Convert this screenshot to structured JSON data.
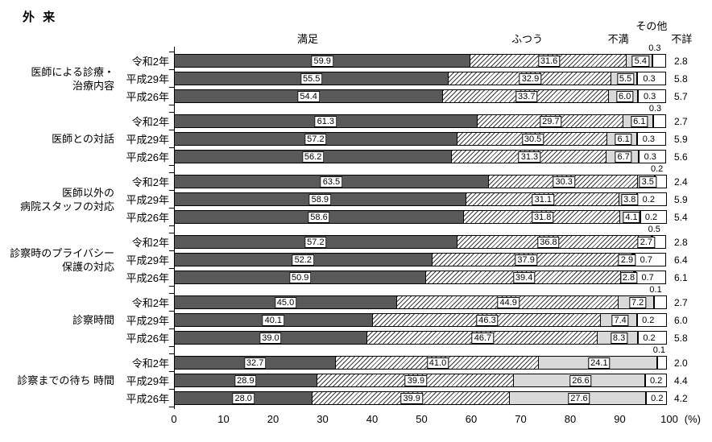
{
  "title": "外 来",
  "legend": {
    "satisfied": "満足",
    "neutral": "ふつう",
    "dissatisfied": "不満",
    "other": "その他",
    "unknown": "不詳"
  },
  "axis": {
    "ticks": [
      0,
      10,
      20,
      30,
      40,
      50,
      60,
      70,
      80,
      90,
      100
    ],
    "unit": "(%)",
    "xlim": [
      0,
      100
    ]
  },
  "colors": {
    "satisfied": "#595959",
    "dissatisfied": "#d9d9d9",
    "other": "#000000",
    "unknown": "#ffffff",
    "neutral_line": "#3a3a3a"
  },
  "chart_data": {
    "type": "bar",
    "stacked": true,
    "orientation": "horizontal",
    "title": "外 来",
    "xlim": [
      0,
      100
    ],
    "unit": "%",
    "series_labels": [
      "満足",
      "ふつう",
      "不満",
      "その他",
      "不詳"
    ],
    "series_names": [
      "satisfied",
      "neutral",
      "dissatisfied",
      "other",
      "unknown"
    ],
    "groups": [
      {
        "label": "医師による診療・治療内容",
        "label_lines": [
          "医師による診療・",
          "治療内容"
        ],
        "rows": [
          {
            "year": "令和2年",
            "values": [
              59.9,
              31.6,
              5.4,
              0.3,
              2.8
            ]
          },
          {
            "year": "平成29年",
            "values": [
              55.5,
              32.9,
              5.5,
              0.3,
              5.8
            ]
          },
          {
            "year": "平成26年",
            "values": [
              54.4,
              33.7,
              6.0,
              0.3,
              5.7
            ]
          }
        ]
      },
      {
        "label": "医師との対話",
        "label_lines": [
          "医師との対話"
        ],
        "rows": [
          {
            "year": "令和2年",
            "values": [
              61.3,
              29.7,
              6.1,
              0.3,
              2.7
            ]
          },
          {
            "year": "平成29年",
            "values": [
              57.2,
              30.5,
              6.1,
              0.3,
              5.9
            ]
          },
          {
            "year": "平成26年",
            "values": [
              56.2,
              31.3,
              6.7,
              0.3,
              5.6
            ]
          }
        ]
      },
      {
        "label": "医師以外の病院スタッフの対応",
        "label_lines": [
          "医師以外の",
          "病院スタッフの対応"
        ],
        "rows": [
          {
            "year": "令和2年",
            "values": [
              63.5,
              30.3,
              3.5,
              0.2,
              2.4
            ]
          },
          {
            "year": "平成29年",
            "values": [
              58.9,
              31.1,
              3.8,
              0.2,
              5.9
            ]
          },
          {
            "year": "平成26年",
            "values": [
              58.6,
              31.8,
              4.1,
              0.2,
              5.4
            ]
          }
        ]
      },
      {
        "label": "診察時のプライバシー保護の対応",
        "label_lines": [
          "診察時のプライバシー",
          "保護の対応"
        ],
        "rows": [
          {
            "year": "令和2年",
            "values": [
              57.2,
              36.8,
              2.7,
              0.5,
              2.8
            ]
          },
          {
            "year": "平成29年",
            "values": [
              52.2,
              37.9,
              2.9,
              0.7,
              6.4
            ]
          },
          {
            "year": "平成26年",
            "values": [
              50.9,
              39.4,
              2.8,
              0.7,
              6.1
            ]
          }
        ]
      },
      {
        "label": "診察時間",
        "label_lines": [
          "診察時間"
        ],
        "rows": [
          {
            "year": "令和2年",
            "values": [
              45.0,
              44.9,
              7.2,
              0.1,
              2.7
            ]
          },
          {
            "year": "平成29年",
            "values": [
              40.1,
              46.3,
              7.4,
              0.2,
              6.0
            ]
          },
          {
            "year": "平成26年",
            "values": [
              39.0,
              46.7,
              8.3,
              0.2,
              5.8
            ]
          }
        ]
      },
      {
        "label": "診察までの待ち 時間",
        "label_lines": [
          "診察までの待ち 時間"
        ],
        "rows": [
          {
            "year": "令和2年",
            "values": [
              32.7,
              41.0,
              24.1,
              0.1,
              2.0
            ]
          },
          {
            "year": "平成29年",
            "values": [
              28.9,
              39.9,
              26.6,
              0.2,
              4.4
            ]
          },
          {
            "year": "平成26年",
            "values": [
              28.0,
              39.9,
              27.6,
              0.2,
              4.2
            ]
          }
        ]
      }
    ]
  }
}
